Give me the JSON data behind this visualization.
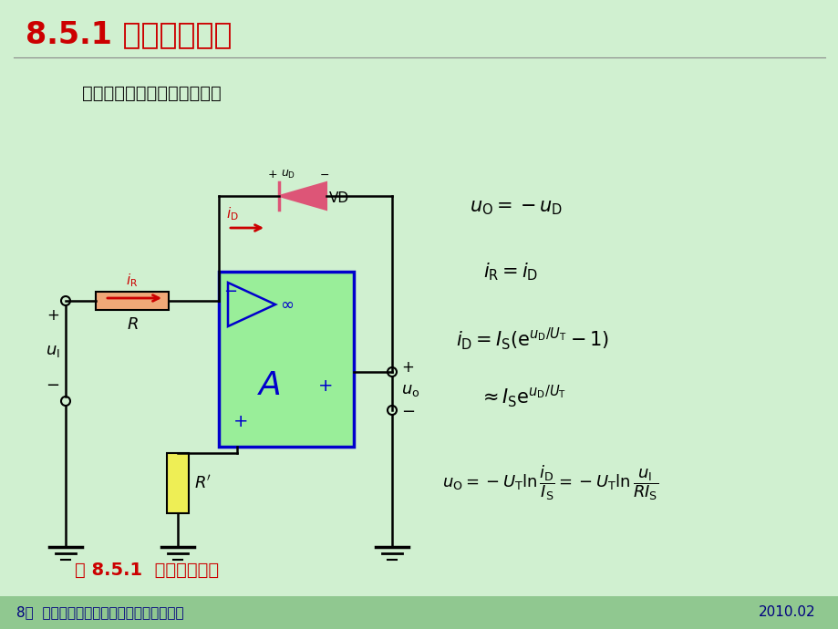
{
  "bg_color": "#d0f0d0",
  "title": "8.5.1 对数运算电路",
  "title_color": "#cc0000",
  "title_fontsize": 24,
  "subtitle": "对数运算电路见图。由图可知",
  "subtitle_color": "#111111",
  "subtitle_fontsize": 14,
  "footer_text1": "8章  运算放大器和模拟乘法器线性应用电路",
  "footer_text2": "2010.02",
  "footer_color": "#000080",
  "footer_bg": "#90c890",
  "caption": "图 8.5.1  对数运算电路",
  "caption_color": "#cc0000",
  "eq1": "$u_{\\mathrm{O}} = -u_{\\mathrm{D}}$",
  "eq2": "$i_{\\mathrm{R}} = i_{\\mathrm{D}}$",
  "eq3": "$i_{\\mathrm{D}} = I_{\\mathrm{S}}(\\mathrm{e}^{u_{\\mathrm{D}}/U_{\\mathrm{T}}} -1)$",
  "eq4": "$\\approx I_{\\mathrm{S}}\\mathrm{e}^{u_{\\mathrm{D}}/U_{\\mathrm{T}}}$",
  "eq5": "$u_{\\mathrm{O}} = -U_{\\mathrm{T}}\\ln\\dfrac{i_{\\mathrm{D}}}{I_{\\mathrm{S}}} = -U_{\\mathrm{T}}\\ln\\dfrac{u_{\\mathrm{I}}}{RI_{\\mathrm{S}}}$"
}
